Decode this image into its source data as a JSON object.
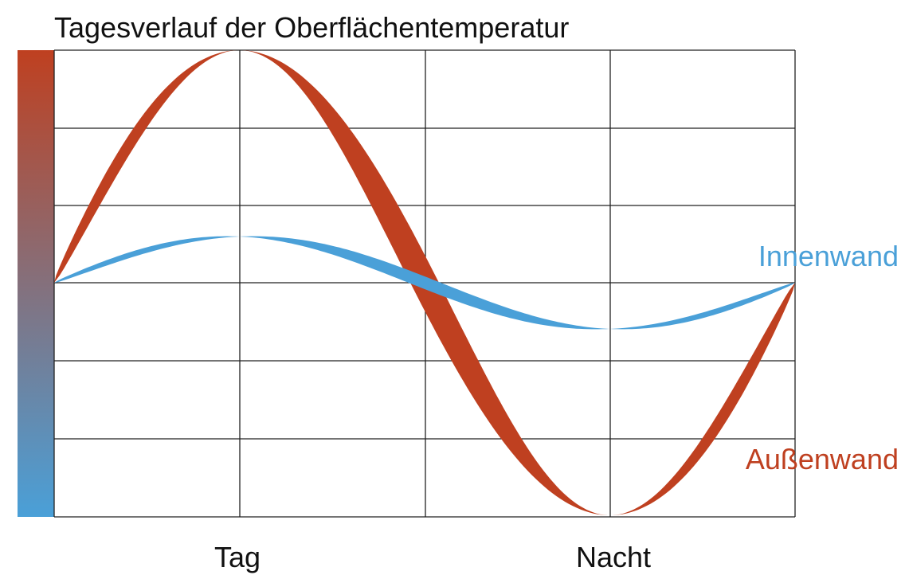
{
  "title": "Tagesverlauf der Oberflächentemperatur",
  "x_labels": [
    "Tag",
    "Nacht"
  ],
  "curves": [
    {
      "name": "Innenwand"
    },
    {
      "name": "Außenwand"
    }
  ]
}
